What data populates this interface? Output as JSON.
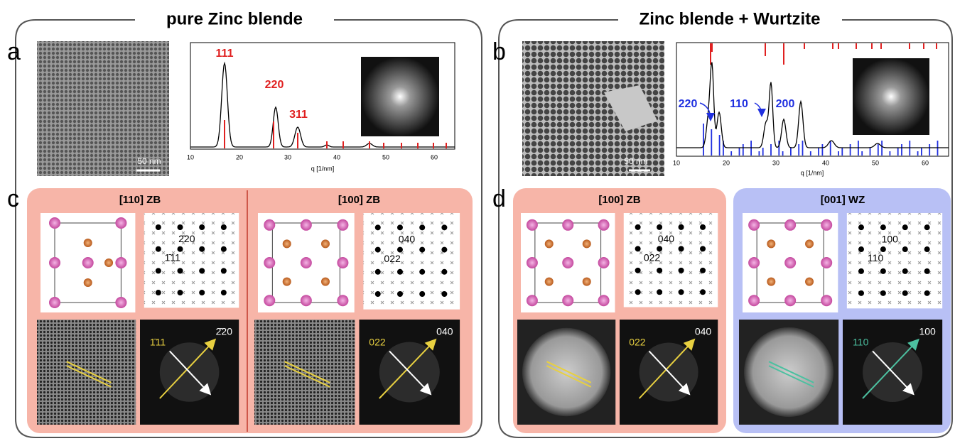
{
  "left_title": "pure Zinc blende",
  "right_title": "Zinc blende + Wurtzite",
  "a": {
    "letter": "a",
    "scale_bar": "50 nm",
    "peaks": [
      "111",
      "220",
      "311"
    ],
    "xlabel": "q [1/nm]",
    "xticks": [
      10,
      20,
      30,
      40,
      50,
      60
    ]
  },
  "b": {
    "letter": "b",
    "scale_bar": "50 nm",
    "peaks": [
      "220",
      "110",
      "200"
    ],
    "xlabel": "q [1/nm]",
    "xticks": [
      10,
      20,
      30,
      40,
      50,
      60
    ]
  },
  "c": {
    "letter": "c",
    "views": [
      {
        "heading": "[110] ZB",
        "pattern_labels": [
          "2̄20",
          "1̄11"
        ],
        "fft_labels": [
          "2̄20",
          "1̄11"
        ]
      },
      {
        "heading": "[100] ZB",
        "pattern_labels": [
          "040",
          "022"
        ],
        "fft_labels": [
          "040",
          "022"
        ]
      }
    ]
  },
  "d": {
    "letter": "d",
    "views": [
      {
        "heading": "[100] ZB",
        "pattern_labels": [
          "040",
          "022"
        ],
        "fft_labels": [
          "040",
          "022"
        ]
      },
      {
        "heading": "[001] WZ",
        "pattern_labels": [
          "100",
          "110"
        ],
        "fft_labels": [
          "100",
          "110"
        ]
      }
    ]
  }
}
